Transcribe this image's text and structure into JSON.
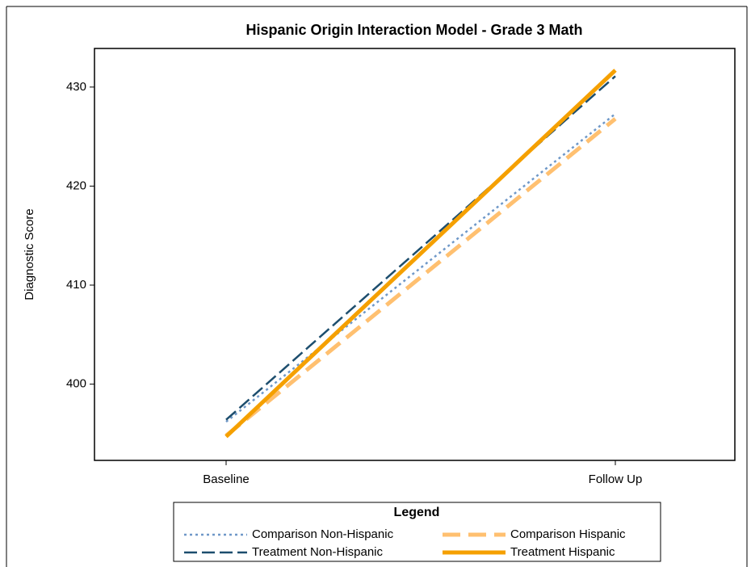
{
  "chart_data": {
    "type": "line",
    "title": "Hispanic Origin Interaction Model - Grade 3 Math",
    "y_label": "Diagnostic Score",
    "categories": [
      "Baseline",
      "Follow Up"
    ],
    "series": [
      {
        "name": "Comparison Non-Hispanic",
        "color": "#6f98c8",
        "values": [
          396.2,
          427.3
        ]
      },
      {
        "name": "Comparison Hispanic",
        "color": "#ffc070",
        "values": [
          394.8,
          426.8
        ]
      },
      {
        "name": "Treatment Non-Hispanic",
        "color": "#1d4e6e",
        "values": [
          396.4,
          431.1
        ]
      },
      {
        "name": "Treatment Hispanic",
        "color": "#f5a000",
        "values": [
          394.7,
          431.7
        ]
      }
    ],
    "ylim": [
      392.3,
      433.9
    ],
    "yticks": [
      400,
      410,
      420,
      430
    ],
    "legend_title": "Legend"
  }
}
